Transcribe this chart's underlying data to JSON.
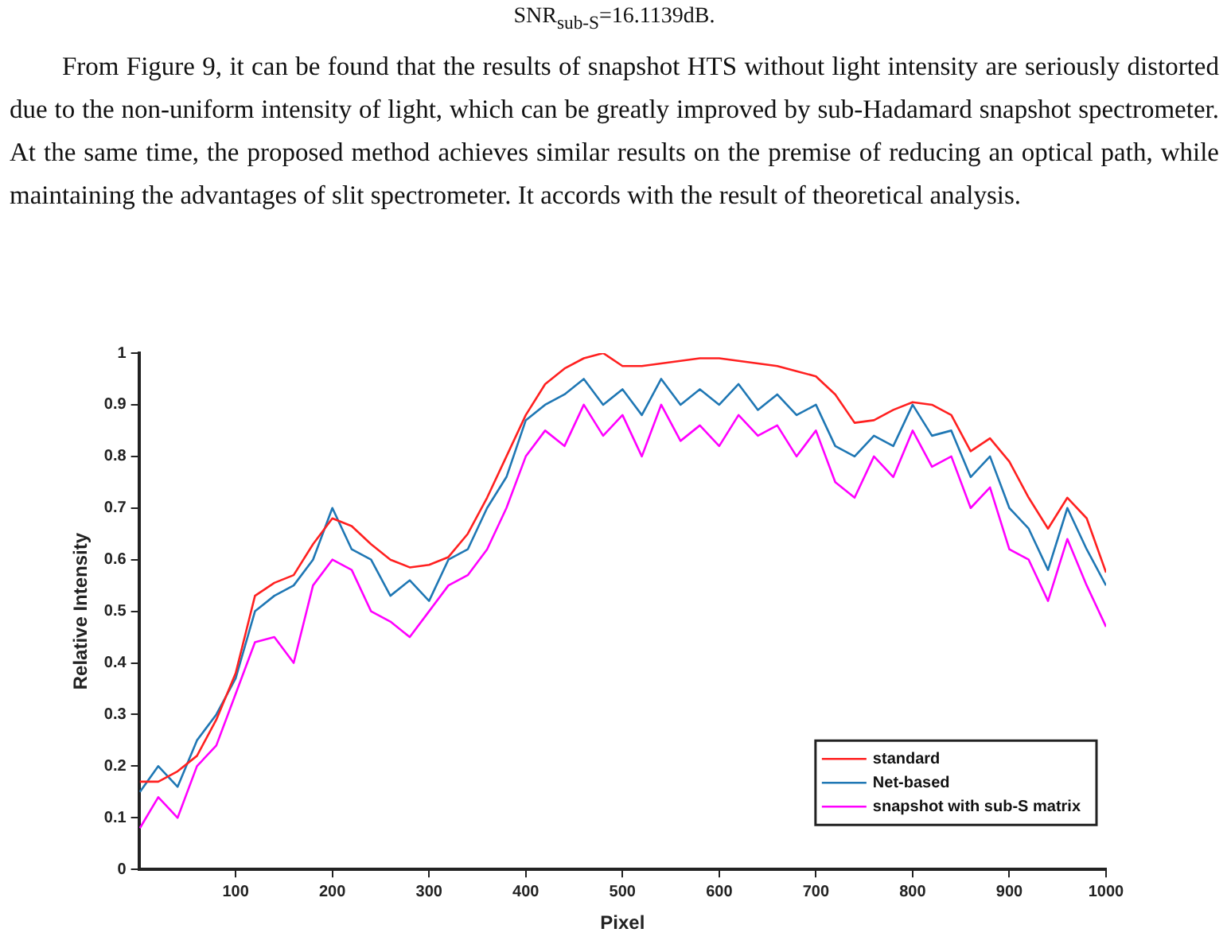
{
  "chart_data": {
    "type": "line",
    "xlabel": "Pixel",
    "ylabel": "Relative Intensity",
    "annotations": [
      "SNR$_{sub-S}$=16.1139dB.",
      "From Figure 9, it can be found that the results of snapshot HTS without light intensity are seriously distorted due to the non-uniform intensity of light, which can be greatly improved by sub-Hadamard snapshot spectrometer. At the same time, the proposed method achieves similar results on the premise of reducing an optical path, while maintaining the advantages of slit spectrometer. It accords with the result of theoretical analysis."
    ],
    "x": [
      1,
      20,
      40,
      60,
      80,
      100,
      120,
      140,
      160,
      180,
      200,
      220,
      240,
      260,
      280,
      300,
      320,
      340,
      360,
      380,
      400,
      420,
      440,
      460,
      480,
      500,
      520,
      540,
      560,
      580,
      600,
      620,
      640,
      660,
      680,
      700,
      720,
      740,
      760,
      780,
      800,
      820,
      840,
      860,
      880,
      900,
      920,
      940,
      960,
      980,
      1000
    ],
    "series": [
      {
        "name": "standard",
        "color": "#ff2020",
        "values": [
          0.17,
          0.17,
          0.19,
          0.22,
          0.29,
          0.38,
          0.53,
          0.555,
          0.57,
          0.63,
          0.68,
          0.665,
          0.63,
          0.6,
          0.585,
          0.59,
          0.605,
          0.65,
          0.72,
          0.8,
          0.88,
          0.94,
          0.97,
          0.99,
          1.0,
          0.975,
          0.975,
          0.98,
          0.985,
          0.99,
          0.99,
          0.985,
          0.98,
          0.975,
          0.965,
          0.955,
          0.92,
          0.865,
          0.87,
          0.89,
          0.905,
          0.9,
          0.88,
          0.81,
          0.835,
          0.79,
          0.72,
          0.66,
          0.72,
          0.68,
          0.575
        ]
      },
      {
        "name": "Net-based",
        "color": "#1f77b4",
        "values": [
          0.15,
          0.2,
          0.16,
          0.25,
          0.3,
          0.37,
          0.5,
          0.53,
          0.55,
          0.6,
          0.7,
          0.62,
          0.6,
          0.53,
          0.56,
          0.52,
          0.6,
          0.62,
          0.7,
          0.76,
          0.87,
          0.9,
          0.92,
          0.95,
          0.9,
          0.93,
          0.88,
          0.95,
          0.9,
          0.93,
          0.9,
          0.94,
          0.89,
          0.92,
          0.88,
          0.9,
          0.82,
          0.8,
          0.84,
          0.82,
          0.9,
          0.84,
          0.85,
          0.76,
          0.8,
          0.7,
          0.66,
          0.58,
          0.7,
          0.62,
          0.55
        ]
      },
      {
        "name": "snapshot with sub-S matrix",
        "color": "#ff00ff",
        "values": [
          0.08,
          0.14,
          0.1,
          0.2,
          0.24,
          0.34,
          0.44,
          0.45,
          0.4,
          0.55,
          0.6,
          0.58,
          0.5,
          0.48,
          0.45,
          0.5,
          0.55,
          0.57,
          0.62,
          0.7,
          0.8,
          0.85,
          0.82,
          0.9,
          0.84,
          0.88,
          0.8,
          0.9,
          0.83,
          0.86,
          0.82,
          0.88,
          0.84,
          0.86,
          0.8,
          0.85,
          0.75,
          0.72,
          0.8,
          0.76,
          0.85,
          0.78,
          0.8,
          0.7,
          0.74,
          0.62,
          0.6,
          0.52,
          0.64,
          0.55,
          0.47
        ]
      }
    ],
    "xlim": [
      0,
      1000
    ],
    "xticks": [
      100,
      200,
      300,
      400,
      500,
      600,
      700,
      800,
      900,
      1000
    ],
    "ylim": [
      0,
      1
    ],
    "yticks": [
      0,
      0.1,
      0.2,
      0.3,
      0.4,
      0.5,
      0.6,
      0.7,
      0.8,
      0.9,
      1
    ],
    "grid": false,
    "legend": "bottom right",
    "marker": "none",
    "line_style": "solid"
  }
}
